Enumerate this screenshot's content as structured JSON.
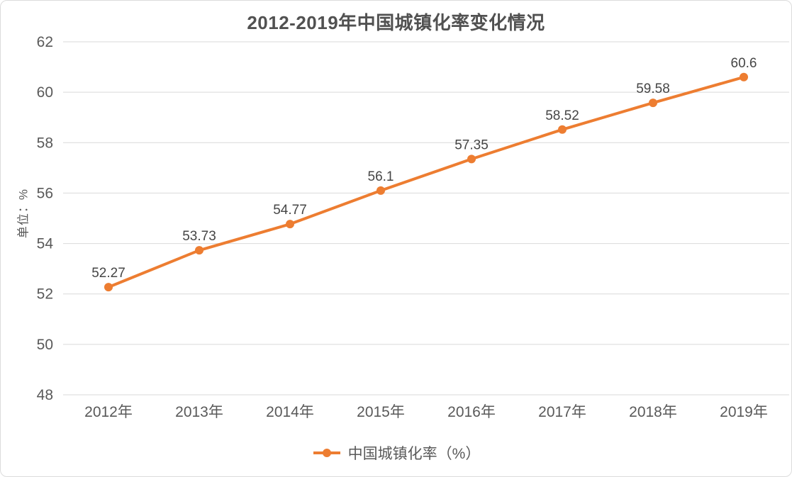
{
  "chart_data": {
    "type": "line",
    "title": "2012-2019年中国城镇化率变化情况",
    "ylabel": "单位：%",
    "xlabel": "",
    "categories": [
      "2012年",
      "2013年",
      "2014年",
      "2015年",
      "2016年",
      "2017年",
      "2018年",
      "2019年"
    ],
    "series": [
      {
        "name": "中国城镇化率（%）",
        "values": [
          52.27,
          53.73,
          54.77,
          56.1,
          57.35,
          58.52,
          59.58,
          60.6
        ]
      }
    ],
    "data_labels": [
      "52.27",
      "53.73",
      "54.77",
      "56.1",
      "57.35",
      "58.52",
      "59.58",
      "60.6"
    ],
    "ylim": [
      48,
      62
    ],
    "yticks": [
      48,
      50,
      52,
      54,
      56,
      58,
      60,
      62
    ],
    "grid": "horizontal",
    "legend_position": "bottom",
    "colors": {
      "line": "#ED7D31",
      "grid": "#D9D9D9",
      "axis_text": "#595959",
      "data_label_text": "#454545",
      "title_text": "#515151",
      "background": "#FFFFFF"
    }
  }
}
